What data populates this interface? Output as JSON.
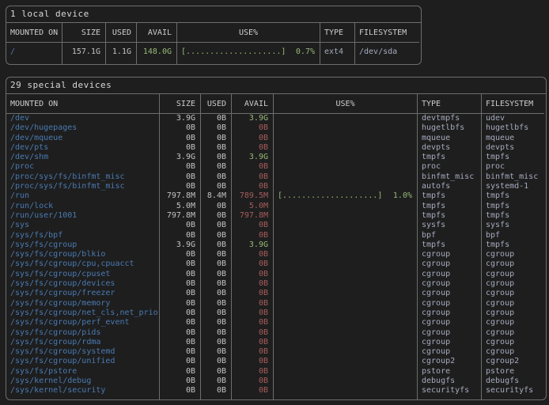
{
  "theme": {
    "background": "#1e1e1e",
    "border": "#6d6d6d",
    "mount_path_blue": "#4a7ab2",
    "avail_ok_green": "#98b878",
    "avail_low_red": "#a85c5c",
    "type_fs_lavender": "#a6abbe",
    "usage_green": "#98b878"
  },
  "local_table": {
    "title": "1 local device",
    "headers": [
      "MOUNTED ON",
      "SIZE",
      "USED",
      "AVAIL",
      "USE%",
      "TYPE",
      "FILESYSTEM"
    ],
    "rows": [
      {
        "mounted_on": "/",
        "size": "157.1G",
        "used": "1.1G",
        "avail": "148.0G",
        "avail_color": "green",
        "bar": "[....................]",
        "pct": "0.7%",
        "type": "ext4",
        "filesystem": "/dev/sda"
      }
    ]
  },
  "special_table": {
    "title": "29 special devices",
    "headers": [
      "MOUNTED ON",
      "SIZE",
      "USED",
      "AVAIL",
      "USE%",
      "TYPE",
      "FILESYSTEM"
    ],
    "rows": [
      {
        "mounted_on": "/dev",
        "size": "3.9G",
        "used": "0B",
        "avail": "3.9G",
        "avail_color": "green",
        "bar": "",
        "pct": "",
        "type": "devtmpfs",
        "filesystem": "udev"
      },
      {
        "mounted_on": "/dev/hugepages",
        "size": "0B",
        "used": "0B",
        "avail": "0B",
        "avail_color": "red",
        "bar": "",
        "pct": "",
        "type": "hugetlbfs",
        "filesystem": "hugetlbfs"
      },
      {
        "mounted_on": "/dev/mqueue",
        "size": "0B",
        "used": "0B",
        "avail": "0B",
        "avail_color": "red",
        "bar": "",
        "pct": "",
        "type": "mqueue",
        "filesystem": "mqueue"
      },
      {
        "mounted_on": "/dev/pts",
        "size": "0B",
        "used": "0B",
        "avail": "0B",
        "avail_color": "red",
        "bar": "",
        "pct": "",
        "type": "devpts",
        "filesystem": "devpts"
      },
      {
        "mounted_on": "/dev/shm",
        "size": "3.9G",
        "used": "0B",
        "avail": "3.9G",
        "avail_color": "green",
        "bar": "",
        "pct": "",
        "type": "tmpfs",
        "filesystem": "tmpfs"
      },
      {
        "mounted_on": "/proc",
        "size": "0B",
        "used": "0B",
        "avail": "0B",
        "avail_color": "red",
        "bar": "",
        "pct": "",
        "type": "proc",
        "filesystem": "proc"
      },
      {
        "mounted_on": "/proc/sys/fs/binfmt_misc",
        "size": "0B",
        "used": "0B",
        "avail": "0B",
        "avail_color": "red",
        "bar": "",
        "pct": "",
        "type": "binfmt_misc",
        "filesystem": "binfmt_misc"
      },
      {
        "mounted_on": "/proc/sys/fs/binfmt_misc",
        "size": "0B",
        "used": "0B",
        "avail": "0B",
        "avail_color": "red",
        "bar": "",
        "pct": "",
        "type": "autofs",
        "filesystem": "systemd-1"
      },
      {
        "mounted_on": "/run",
        "size": "797.8M",
        "used": "8.4M",
        "avail": "789.5M",
        "avail_color": "red",
        "bar": "[....................]",
        "pct": "1.0%",
        "type": "tmpfs",
        "filesystem": "tmpfs"
      },
      {
        "mounted_on": "/run/lock",
        "size": "5.0M",
        "used": "0B",
        "avail": "5.0M",
        "avail_color": "red",
        "bar": "",
        "pct": "",
        "type": "tmpfs",
        "filesystem": "tmpfs"
      },
      {
        "mounted_on": "/run/user/1001",
        "size": "797.8M",
        "used": "0B",
        "avail": "797.8M",
        "avail_color": "red",
        "bar": "",
        "pct": "",
        "type": "tmpfs",
        "filesystem": "tmpfs"
      },
      {
        "mounted_on": "/sys",
        "size": "0B",
        "used": "0B",
        "avail": "0B",
        "avail_color": "red",
        "bar": "",
        "pct": "",
        "type": "sysfs",
        "filesystem": "sysfs"
      },
      {
        "mounted_on": "/sys/fs/bpf",
        "size": "0B",
        "used": "0B",
        "avail": "0B",
        "avail_color": "red",
        "bar": "",
        "pct": "",
        "type": "bpf",
        "filesystem": "bpf"
      },
      {
        "mounted_on": "/sys/fs/cgroup",
        "size": "3.9G",
        "used": "0B",
        "avail": "3.9G",
        "avail_color": "green",
        "bar": "",
        "pct": "",
        "type": "tmpfs",
        "filesystem": "tmpfs"
      },
      {
        "mounted_on": "/sys/fs/cgroup/blkio",
        "size": "0B",
        "used": "0B",
        "avail": "0B",
        "avail_color": "red",
        "bar": "",
        "pct": "",
        "type": "cgroup",
        "filesystem": "cgroup"
      },
      {
        "mounted_on": "/sys/fs/cgroup/cpu,cpuacct",
        "size": "0B",
        "used": "0B",
        "avail": "0B",
        "avail_color": "red",
        "bar": "",
        "pct": "",
        "type": "cgroup",
        "filesystem": "cgroup"
      },
      {
        "mounted_on": "/sys/fs/cgroup/cpuset",
        "size": "0B",
        "used": "0B",
        "avail": "0B",
        "avail_color": "red",
        "bar": "",
        "pct": "",
        "type": "cgroup",
        "filesystem": "cgroup"
      },
      {
        "mounted_on": "/sys/fs/cgroup/devices",
        "size": "0B",
        "used": "0B",
        "avail": "0B",
        "avail_color": "red",
        "bar": "",
        "pct": "",
        "type": "cgroup",
        "filesystem": "cgroup"
      },
      {
        "mounted_on": "/sys/fs/cgroup/freezer",
        "size": "0B",
        "used": "0B",
        "avail": "0B",
        "avail_color": "red",
        "bar": "",
        "pct": "",
        "type": "cgroup",
        "filesystem": "cgroup"
      },
      {
        "mounted_on": "/sys/fs/cgroup/memory",
        "size": "0B",
        "used": "0B",
        "avail": "0B",
        "avail_color": "red",
        "bar": "",
        "pct": "",
        "type": "cgroup",
        "filesystem": "cgroup"
      },
      {
        "mounted_on": "/sys/fs/cgroup/net_cls,net_prio",
        "size": "0B",
        "used": "0B",
        "avail": "0B",
        "avail_color": "red",
        "bar": "",
        "pct": "",
        "type": "cgroup",
        "filesystem": "cgroup"
      },
      {
        "mounted_on": "/sys/fs/cgroup/perf_event",
        "size": "0B",
        "used": "0B",
        "avail": "0B",
        "avail_color": "red",
        "bar": "",
        "pct": "",
        "type": "cgroup",
        "filesystem": "cgroup"
      },
      {
        "mounted_on": "/sys/fs/cgroup/pids",
        "size": "0B",
        "used": "0B",
        "avail": "0B",
        "avail_color": "red",
        "bar": "",
        "pct": "",
        "type": "cgroup",
        "filesystem": "cgroup"
      },
      {
        "mounted_on": "/sys/fs/cgroup/rdma",
        "size": "0B",
        "used": "0B",
        "avail": "0B",
        "avail_color": "red",
        "bar": "",
        "pct": "",
        "type": "cgroup",
        "filesystem": "cgroup"
      },
      {
        "mounted_on": "/sys/fs/cgroup/systemd",
        "size": "0B",
        "used": "0B",
        "avail": "0B",
        "avail_color": "red",
        "bar": "",
        "pct": "",
        "type": "cgroup",
        "filesystem": "cgroup"
      },
      {
        "mounted_on": "/sys/fs/cgroup/unified",
        "size": "0B",
        "used": "0B",
        "avail": "0B",
        "avail_color": "red",
        "bar": "",
        "pct": "",
        "type": "cgroup2",
        "filesystem": "cgroup2"
      },
      {
        "mounted_on": "/sys/fs/pstore",
        "size": "0B",
        "used": "0B",
        "avail": "0B",
        "avail_color": "red",
        "bar": "",
        "pct": "",
        "type": "pstore",
        "filesystem": "pstore"
      },
      {
        "mounted_on": "/sys/kernel/debug",
        "size": "0B",
        "used": "0B",
        "avail": "0B",
        "avail_color": "red",
        "bar": "",
        "pct": "",
        "type": "debugfs",
        "filesystem": "debugfs"
      },
      {
        "mounted_on": "/sys/kernel/security",
        "size": "0B",
        "used": "0B",
        "avail": "0B",
        "avail_color": "red",
        "bar": "",
        "pct": "",
        "type": "securityfs",
        "filesystem": "securityfs"
      }
    ]
  }
}
